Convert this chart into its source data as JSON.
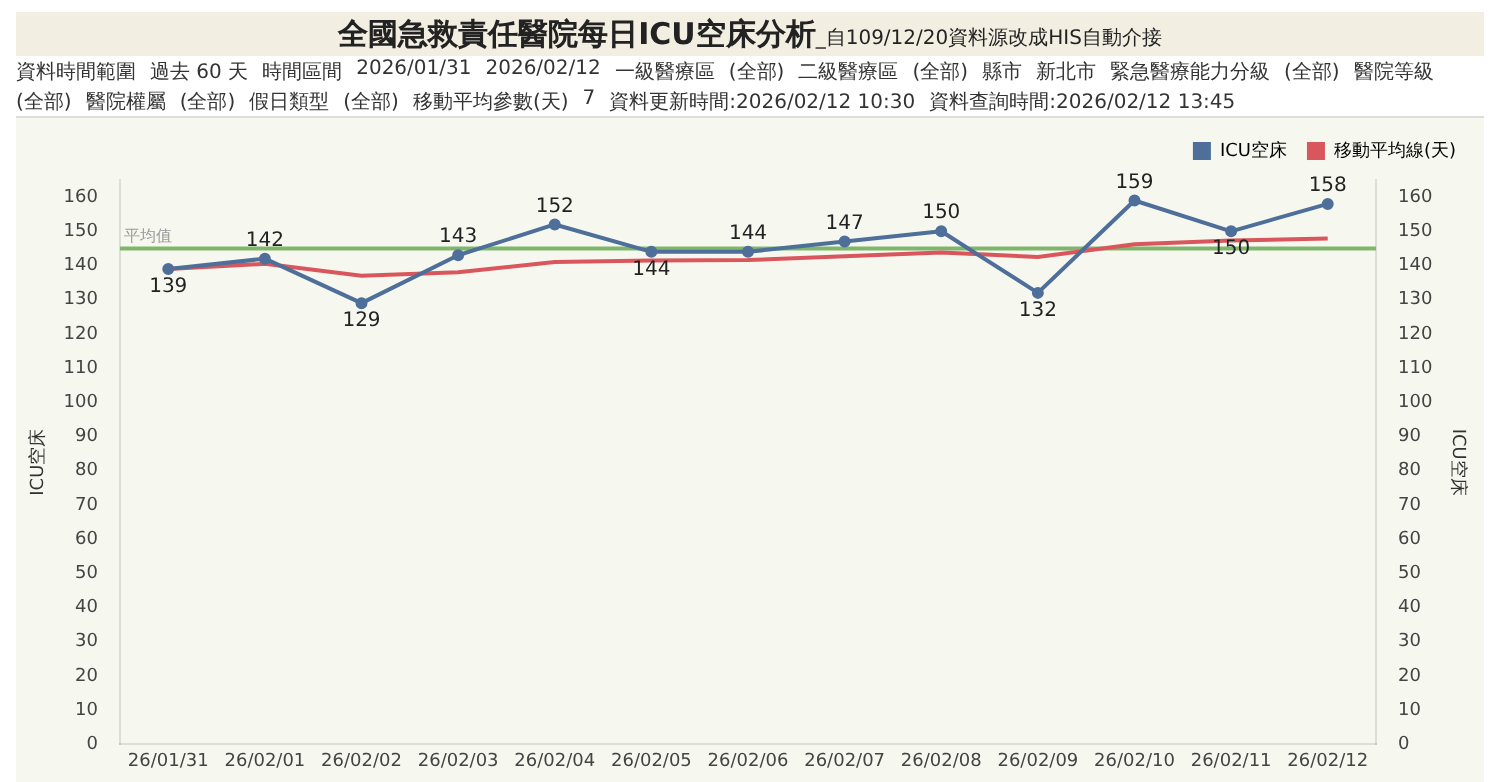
{
  "chart_data": {
    "type": "line",
    "title": "全國急救責任醫院每日ICU空床分析",
    "subtitle": "_自109/12/20資料源改成HIS自動介接",
    "categories": [
      "26/01/31",
      "26/02/01",
      "26/02/02",
      "26/02/03",
      "26/02/04",
      "26/02/05",
      "26/02/06",
      "26/02/07",
      "26/02/08",
      "26/02/09",
      "26/02/10",
      "26/02/11",
      "26/02/12"
    ],
    "series": [
      {
        "name": "ICU空床",
        "color": "#4e6f99",
        "marker": "circle",
        "values": [
          139,
          142,
          129,
          143,
          152,
          144,
          144,
          147,
          150,
          132,
          159,
          150,
          158
        ],
        "value_labels": [
          "139",
          "142",
          "129",
          "143",
          "152",
          "144",
          "144",
          "147",
          "150",
          "132",
          "159",
          "150",
          "158"
        ]
      },
      {
        "name": "移動平均線(天)",
        "color": "#d9575c",
        "marker": "none",
        "values": [
          139,
          140.5,
          137,
          138,
          141,
          141.5,
          141.6,
          142.7,
          143.8,
          142.5,
          146.2,
          147.3,
          147.9
        ]
      }
    ],
    "ylabel": "ICU空床",
    "y2label": "ICU空床",
    "ylim": [
      0,
      165
    ],
    "yticks": [
      0,
      10,
      20,
      30,
      40,
      50,
      60,
      70,
      80,
      90,
      100,
      110,
      120,
      130,
      140,
      150,
      160
    ],
    "y2lim": [
      0,
      165
    ],
    "y2ticks": [
      0,
      10,
      20,
      30,
      40,
      50,
      60,
      70,
      80,
      90,
      100,
      110,
      120,
      130,
      140,
      150,
      160
    ],
    "ref_lines": [
      {
        "axis": "y",
        "value": 145,
        "label": "平均值",
        "color": "#7fb56c"
      }
    ],
    "legend": "top right",
    "grid": false,
    "annotations": [
      "資料時間範圍",
      "過去 60 天",
      "時間區間",
      "2026/01/31",
      "2026/02/12",
      "一級醫療區",
      "(全部)",
      "二級醫療區",
      "(全部)",
      "縣市",
      "新北市",
      "緊急醫療能力分級",
      "(全部)",
      "醫院等級",
      "(全部)",
      "醫院權屬",
      "(全部)",
      "假日類型",
      "(全部)",
      "移動平均參數(天)",
      "7",
      "資料更新時間:2026/02/12 10:30",
      "資料查詢時間:2026/02/12 13:45"
    ]
  }
}
